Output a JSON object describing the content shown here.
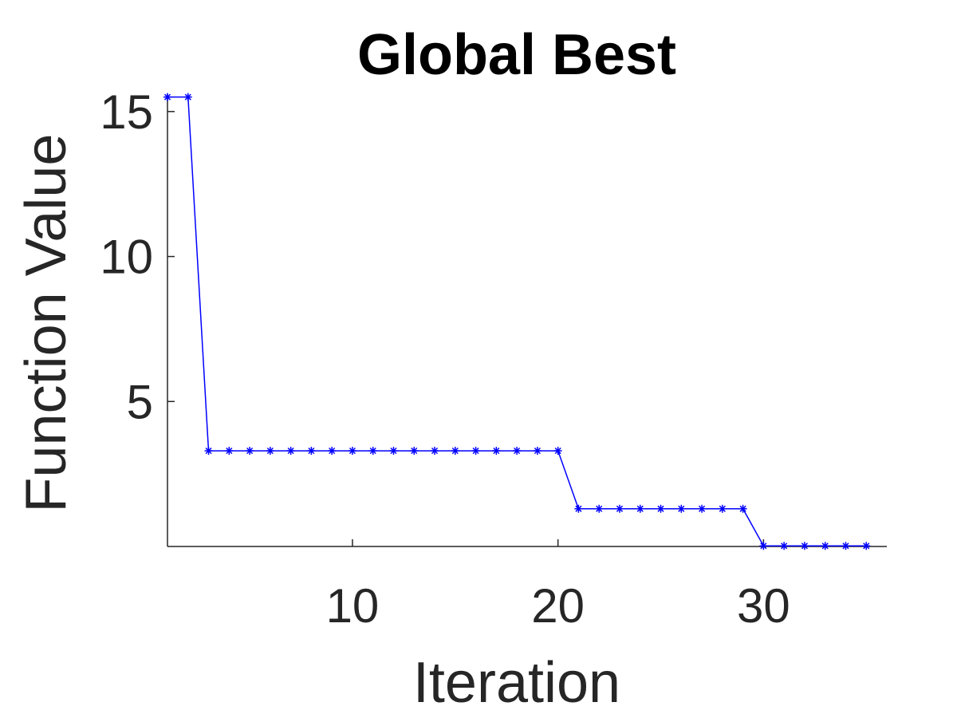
{
  "chart_data": {
    "type": "line",
    "title": "Global Best",
    "xlabel": "Iteration",
    "ylabel": "Function Value",
    "xlim": [
      1,
      36
    ],
    "ylim": [
      0,
      15.6
    ],
    "xticks": [
      10,
      20,
      30
    ],
    "yticks": [
      5,
      10,
      15
    ],
    "x": [
      1,
      2,
      3,
      4,
      5,
      6,
      7,
      8,
      9,
      10,
      11,
      12,
      13,
      14,
      15,
      16,
      17,
      18,
      19,
      20,
      21,
      22,
      23,
      24,
      25,
      26,
      27,
      28,
      29,
      30,
      31,
      32,
      33,
      34,
      35
    ],
    "series": [
      {
        "color": "#0000ff",
        "marker": "asterisk",
        "values": [
          15.5,
          15.5,
          3.3,
          3.3,
          3.3,
          3.3,
          3.3,
          3.3,
          3.3,
          3.3,
          3.3,
          3.3,
          3.3,
          3.3,
          3.3,
          3.3,
          3.3,
          3.3,
          3.3,
          3.3,
          1.3,
          1.3,
          1.3,
          1.3,
          1.3,
          1.3,
          1.3,
          1.3,
          1.3,
          0.02,
          0.02,
          0.02,
          0.02,
          0.02,
          0.02
        ]
      }
    ],
    "grid": false,
    "box": false
  }
}
